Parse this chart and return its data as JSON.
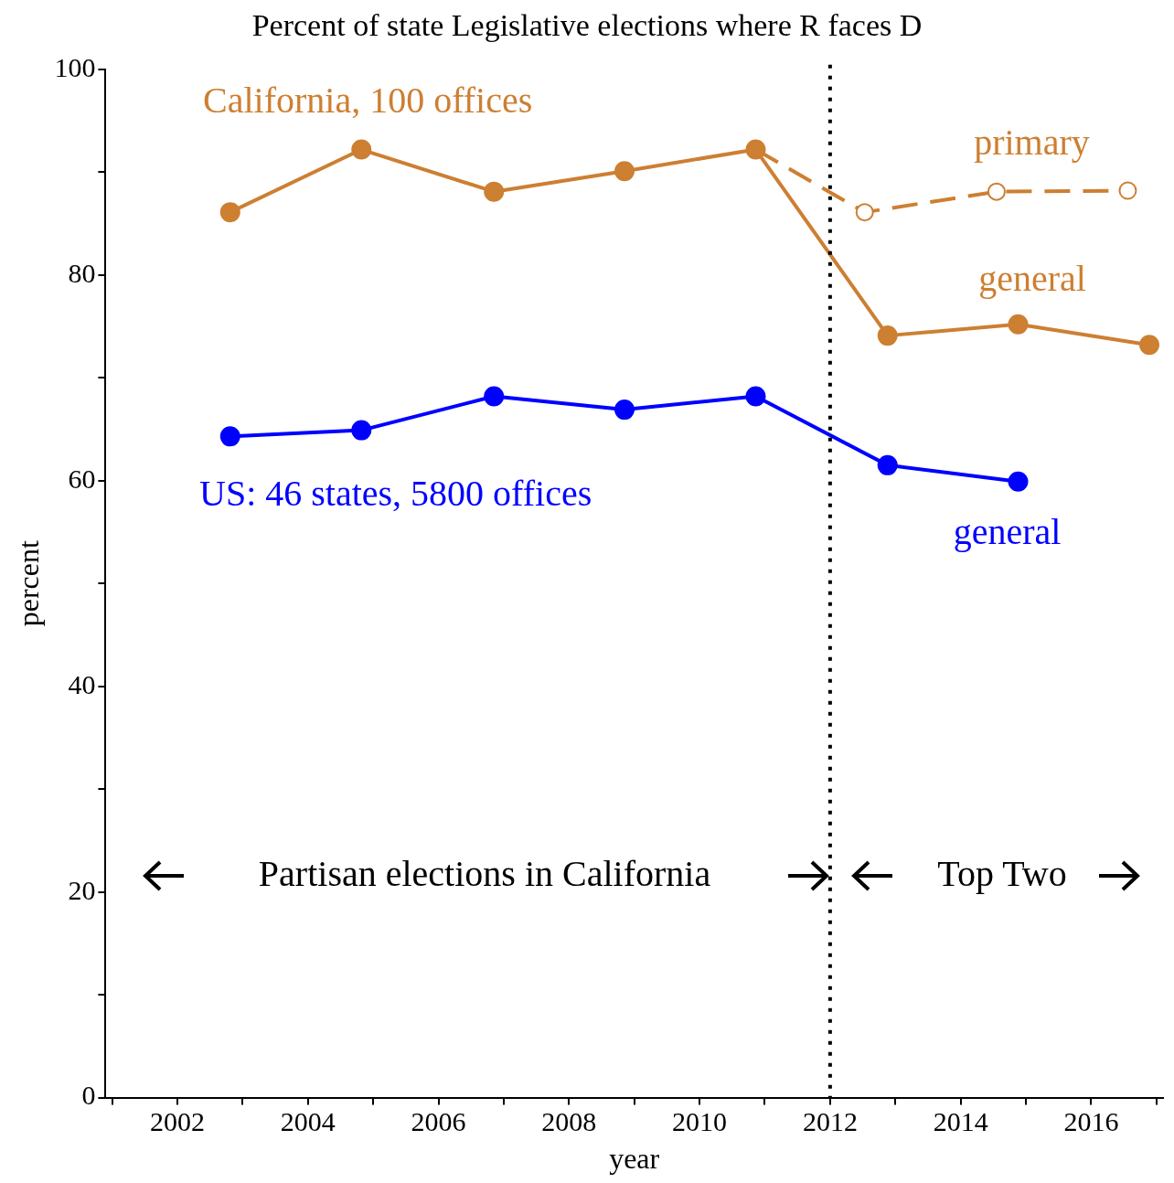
{
  "chart_data": {
    "type": "line",
    "title": "Percent of state Legislative elections where R faces D",
    "xlabel": "year",
    "ylabel": "percent",
    "xlim": [
      2000.9,
      2017.1
    ],
    "xticks": [
      {
        "value": 2001,
        "label": null
      },
      2002,
      {
        "value": 2003,
        "label": null
      },
      2004,
      {
        "value": 2005,
        "label": null
      },
      2006,
      {
        "value": 2007,
        "label": null
      },
      2008,
      {
        "value": 2009,
        "label": null
      },
      2010,
      {
        "value": 2011,
        "label": null
      },
      2012,
      {
        "value": 2013,
        "label": null
      },
      2014,
      {
        "value": 2015,
        "label": null
      },
      2016,
      {
        "value": 2017,
        "label": null
      }
    ],
    "ylim": [
      0,
      100
    ],
    "yticks": [
      0,
      {
        "value": 10,
        "label": null
      },
      20,
      {
        "value": 30,
        "label": null
      },
      40,
      {
        "value": 50,
        "label": null
      },
      60,
      {
        "value": 70,
        "label": null
      },
      80,
      {
        "value": 90,
        "label": null
      },
      100
    ],
    "grid": false,
    "legend": false,
    "marker": "circle",
    "series": [
      {
        "name": "primary",
        "color": "#cd7f32",
        "line_style": "dashed",
        "marker": "open circle",
        "x": [
          2010.86,
          2012.53,
          2014.55,
          2016.56
        ],
        "values": [
          92.2,
          86.1,
          88.1,
          88.2
        ]
      },
      {
        "name": "general",
        "color": "#cd7f32",
        "line_style": "solid",
        "x": [
          2002.81,
          2004.82,
          2006.85,
          2008.85,
          2010.86,
          2012.88,
          2014.88,
          2016.89
        ],
        "values": [
          86.1,
          92.2,
          88.1,
          90.1,
          92.2,
          74.1,
          75.2,
          73.2
        ]
      },
      {
        "name": "general",
        "color": "#0000ff",
        "line_style": "solid",
        "x": [
          2002.81,
          2004.82,
          2006.85,
          2008.85,
          2010.86,
          2012.88,
          2014.88
        ],
        "values": [
          64.3,
          64.9,
          68.2,
          66.9,
          68.2,
          61.5,
          59.9
        ]
      }
    ],
    "ref_lines": [
      {
        "axis": "x",
        "value": 2012,
        "line_style": "dotted",
        "color": "#000000"
      }
    ],
    "annotations": [
      "California, 100 offices",
      "US: 46 states, 5800 offices",
      "Partisan elections in California",
      "Top Two"
    ]
  }
}
